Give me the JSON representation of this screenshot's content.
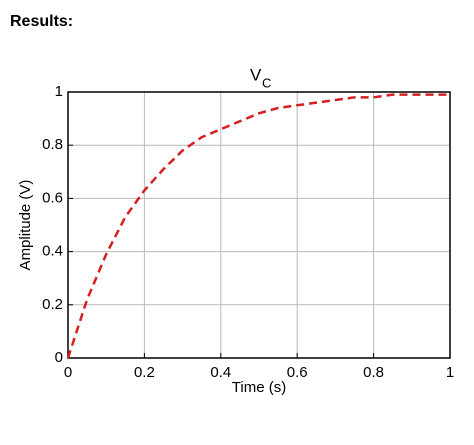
{
  "heading": "Results:",
  "chart_data": {
    "type": "line",
    "title": "V",
    "title_subscript": "C",
    "xlabel": "Time (s)",
    "ylabel": "Amplitude (V)",
    "x": [
      0,
      0.05,
      0.1,
      0.15,
      0.2,
      0.25,
      0.3,
      0.35,
      0.4,
      0.45,
      0.5,
      0.55,
      0.6,
      0.65,
      0.7,
      0.75,
      0.8,
      0.85,
      0.9,
      0.95,
      1
    ],
    "series": [
      {
        "color": "#d42020",
        "values": [
          0,
          0.22,
          0.39,
          0.53,
          0.63,
          0.71,
          0.78,
          0.83,
          0.86,
          0.89,
          0.92,
          0.94,
          0.95,
          0.96,
          0.97,
          0.98,
          0.98,
          0.99,
          0.99,
          0.99,
          0.99
        ]
      }
    ],
    "xlim": [
      0,
      1
    ],
    "ylim": [
      0,
      1
    ],
    "xticks": [
      0,
      0.2,
      0.4,
      0.6,
      0.8,
      1
    ],
    "yticks": [
      0,
      0.2,
      0.4,
      0.6,
      0.8,
      1
    ],
    "grid": true
  }
}
